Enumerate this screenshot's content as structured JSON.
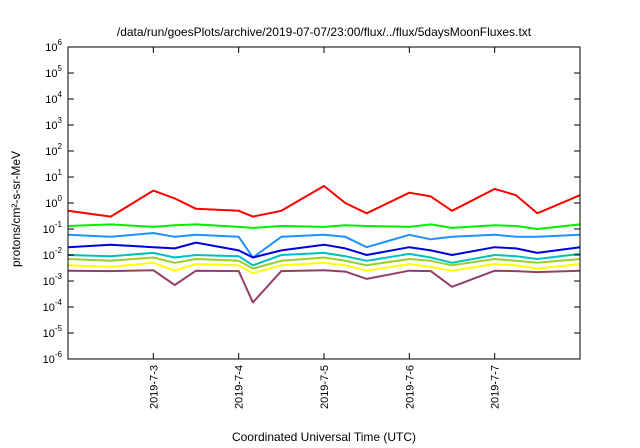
{
  "chart_data": {
    "type": "line",
    "title": "/data/run/goesPlots/archive/2019-07-07/23:00/flux/../flux/5daysMoonFluxes.txt",
    "xlabel": "Coordinated Universal Time (UTC)",
    "ylabel": "protons/cm²-s-sr-MeV",
    "yscale": "log",
    "ylim": [
      1e-06,
      1000000.0
    ],
    "xlim": [
      "2019-07-02T00:00",
      "2019-07-08T00:00"
    ],
    "grid": false,
    "legend": "none",
    "x_ticks": [
      "2019-7-3",
      "2019-7-4",
      "2019-7-5",
      "2019-7-6",
      "2019-7-7"
    ],
    "y_ticks": [
      "10^-6",
      "10^-5",
      "10^-4",
      "10^-3",
      "10^-2",
      "10^-1",
      "10^0",
      "10^1",
      "10^2",
      "10^3",
      "10^4",
      "10^5",
      "10^6"
    ],
    "x": [
      "2019-07-02T00:00",
      "2019-07-02T12:00",
      "2019-07-03T00:00",
      "2019-07-03T06:00",
      "2019-07-03T12:00",
      "2019-07-04T00:00",
      "2019-07-04T04:00",
      "2019-07-04T12:00",
      "2019-07-05T00:00",
      "2019-07-05T06:00",
      "2019-07-05T12:00",
      "2019-07-06T00:00",
      "2019-07-06T06:00",
      "2019-07-06T12:00",
      "2019-07-07T00:00",
      "2019-07-07T06:00",
      "2019-07-07T12:00",
      "2019-07-08T00:00"
    ],
    "series": [
      {
        "color": "#ff0000",
        "values": [
          0.5,
          0.3,
          3.0,
          1.5,
          0.6,
          0.5,
          0.3,
          0.5,
          4.5,
          1.0,
          0.4,
          2.5,
          1.8,
          0.5,
          3.5,
          2.0,
          0.4,
          2.0
        ]
      },
      {
        "color": "#00ee00",
        "values": [
          0.13,
          0.15,
          0.12,
          0.14,
          0.15,
          0.12,
          0.11,
          0.13,
          0.12,
          0.14,
          0.13,
          0.12,
          0.15,
          0.11,
          0.14,
          0.13,
          0.1,
          0.15
        ]
      },
      {
        "color": "#1e90ff",
        "values": [
          0.06,
          0.05,
          0.07,
          0.05,
          0.06,
          0.05,
          0.008,
          0.05,
          0.06,
          0.05,
          0.02,
          0.06,
          0.04,
          0.05,
          0.06,
          0.05,
          0.05,
          0.06
        ]
      },
      {
        "color": "#0000dd",
        "values": [
          0.02,
          0.025,
          0.02,
          0.018,
          0.03,
          0.015,
          0.008,
          0.015,
          0.025,
          0.018,
          0.01,
          0.02,
          0.015,
          0.01,
          0.02,
          0.018,
          0.012,
          0.02
        ]
      },
      {
        "color": "#00bfbf",
        "values": [
          0.01,
          0.009,
          0.012,
          0.008,
          0.01,
          0.009,
          0.004,
          0.01,
          0.012,
          0.009,
          0.006,
          0.011,
          0.008,
          0.005,
          0.01,
          0.009,
          0.007,
          0.011
        ]
      },
      {
        "color": "#9acd32",
        "values": [
          0.007,
          0.006,
          0.008,
          0.005,
          0.007,
          0.006,
          0.003,
          0.006,
          0.008,
          0.006,
          0.004,
          0.007,
          0.006,
          0.004,
          0.007,
          0.006,
          0.005,
          0.007
        ]
      },
      {
        "color": "#ffff00",
        "values": [
          0.004,
          0.0035,
          0.005,
          0.0025,
          0.0045,
          0.004,
          0.002,
          0.004,
          0.005,
          0.004,
          0.0025,
          0.0045,
          0.0035,
          0.0025,
          0.0045,
          0.004,
          0.003,
          0.0045
        ]
      },
      {
        "color": "#943e6a",
        "values": [
          0.0025,
          0.0024,
          0.0026,
          0.0007,
          0.0025,
          0.0024,
          0.00015,
          0.0024,
          0.0026,
          0.0023,
          0.0012,
          0.0025,
          0.0024,
          0.0006,
          0.0025,
          0.0024,
          0.0022,
          0.0025
        ]
      }
    ]
  }
}
